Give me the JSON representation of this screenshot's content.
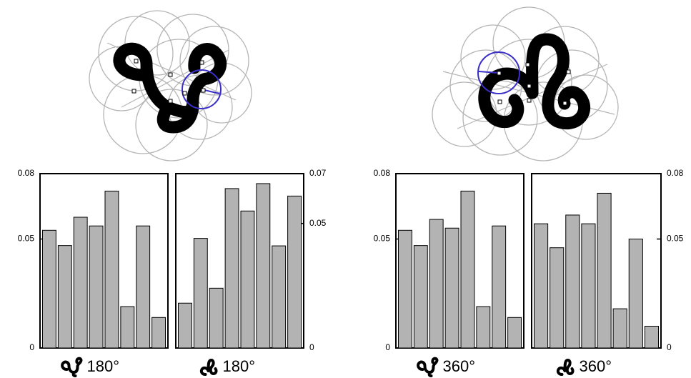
{
  "chart_data": [
    {
      "type": "bar",
      "title": "180°",
      "yaxis_side": "left",
      "color": "#b3b3b3",
      "categories": [
        null,
        null,
        null,
        null,
        null,
        null,
        null,
        null
      ],
      "values": [
        0.054,
        0.047,
        0.06,
        0.056,
        0.072,
        0.019,
        0.056,
        0.014
      ],
      "ylim": [
        0,
        0.08
      ],
      "yticks": [
        0,
        0.05,
        0.08
      ]
    },
    {
      "type": "bar",
      "title": "180°",
      "yaxis_side": "right",
      "color": "#b3b3b3",
      "categories": [
        null,
        null,
        null,
        null,
        null,
        null,
        null,
        null
      ],
      "values": [
        0.018,
        0.044,
        0.024,
        0.064,
        0.055,
        0.066,
        0.041,
        0.061
      ],
      "ylim": [
        0,
        0.07
      ],
      "yticks": [
        0,
        0.05,
        0.07
      ]
    },
    {
      "type": "bar",
      "title": "360°",
      "yaxis_side": "left",
      "color": "#b3b3b3",
      "categories": [
        null,
        null,
        null,
        null,
        null,
        null,
        null,
        null
      ],
      "values": [
        0.054,
        0.047,
        0.059,
        0.055,
        0.072,
        0.019,
        0.056,
        0.014
      ],
      "ylim": [
        0,
        0.08
      ],
      "yticks": [
        0,
        0.05,
        0.08
      ]
    },
    {
      "type": "bar",
      "title": "360°",
      "yaxis_side": "right",
      "color": "#b3b3b3",
      "categories": [
        null,
        null,
        null,
        null,
        null,
        null,
        null,
        null
      ],
      "values": [
        0.057,
        0.046,
        0.061,
        0.057,
        0.071,
        0.018,
        0.05,
        0.01
      ],
      "ylim": [
        0,
        0.08
      ],
      "yticks": [
        0,
        0.05,
        0.08
      ]
    }
  ]
}
